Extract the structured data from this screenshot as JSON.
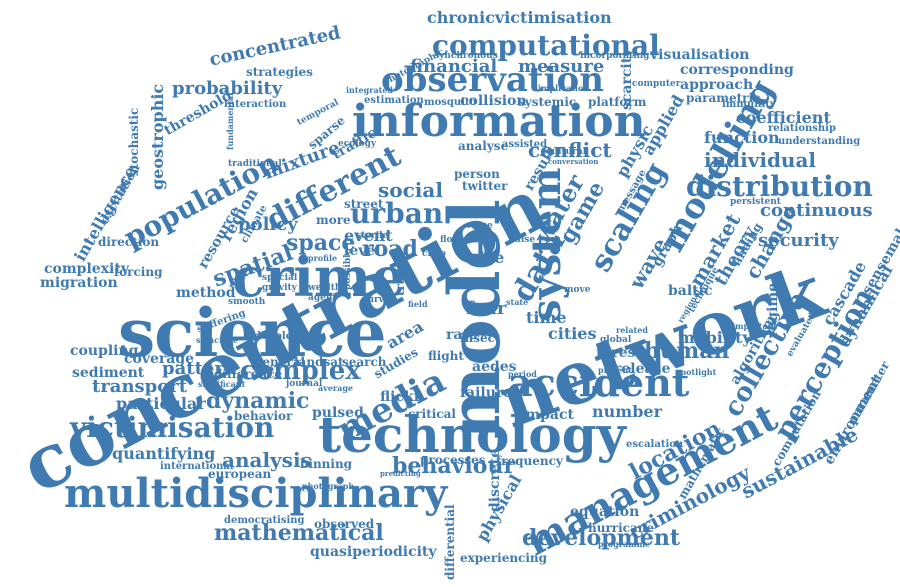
{
  "accent_color": "#3f7ab0",
  "words": {
    "chronicvictimisation": "chronicvictimisation",
    "computational": "computational",
    "concentrated": "concentrated",
    "strategies": "strategies",
    "observation": "observation",
    "financial": "financial",
    "measure": "measure",
    "scarcity": "scarcity",
    "visualisation": "visualisation",
    "approach": "approach",
    "corresponding": "corresponding",
    "parametric": "parametric",
    "immunity": "immunity",
    "coefficient": "coefficient",
    "relationship": "relationship",
    "understanding": "understanding",
    "probability": "probability",
    "threshold": "threshold",
    "interaction": "interaction",
    "information": "information",
    "function": "function",
    "individual": "individual",
    "distribution": "distribution",
    "continuous": "continuous",
    "security": "security",
    "concentration": "concentration",
    "population": "population",
    "geostrophic": "geostrophic",
    "stochastic": "stochastic",
    "intelligence": "intelligence",
    "excitation": "excitation",
    "mixture": "mixture",
    "different": "different",
    "urban": "urban",
    "social": "social",
    "spatial": "spatial",
    "space": "space",
    "policy": "policy",
    "region": "region",
    "resource": "resource",
    "crime": "crime",
    "science": "science",
    "network": "network",
    "model": "model",
    "modelling": "modelling",
    "system": "system",
    "scaling": "scaling",
    "water": "water",
    "data": "data",
    "game": "game",
    "conflict": "conflict",
    "result": "result",
    "physic": "physic",
    "applied": "applied",
    "market": "market",
    "theory": "theory",
    "change": "change",
    "wave": "wave",
    "graph": "graph",
    "direction": "direction",
    "complexity": "complexity",
    "migration": "migration",
    "forcing": "forcing",
    "method": "method",
    "pattern": "pattern",
    "complex": "complex",
    "coupling": "coupling",
    "coverage": "coverage",
    "sediment": "sediment",
    "transport": "transport",
    "particular": "particular",
    "dynamic": "dynamic",
    "media": "media",
    "accident": "accident",
    "victimisation": "victimisation",
    "technology": "technology",
    "quantifying": "quantifying",
    "analysis": "analysis",
    "multidisciplinary": "multidisciplinary",
    "behaviour": "behaviour",
    "mathematical": "mathematical",
    "development": "development",
    "management": "management",
    "collective": "collective",
    "location": "location",
    "number": "number",
    "human": "human",
    "mobility": "mobility",
    "forest": "forest",
    "release": "release",
    "criminology": "criminology",
    "sustainable": "sustainable",
    "perception": "perception",
    "cascade": "cascade",
    "dynamical": "dynamical",
    "algorithm": "algorithm",
    "environment": "environment",
    "computation": "computation",
    "sensemaking": "sensemaking",
    "parameter": "parameter",
    "regime": "regime",
    "baltic": "baltic",
    "cities": "cities",
    "time": "time",
    "fear": "fear",
    "size": "size",
    "road": "road",
    "event": "event",
    "level": "level",
    "street": "street",
    "more": "more",
    "traffic": "traffic",
    "sparse": "sparse",
    "collision": "collision",
    "systemic": "systemic",
    "platform": "platform",
    "mosquito": "mosquito",
    "estimation": "estimation",
    "integrated": "integrated",
    "analyse": "analyse",
    "assisted": "assisted",
    "person": "person",
    "twitter": "twitter",
    "flickr": "flickr",
    "critical": "critical",
    "failure": "failure",
    "impact": "impact",
    "aedes": "aedes",
    "search": "search",
    "general": "general",
    "landsat": "landsat",
    "difference": "difference",
    "behavior": "behavior",
    "pulsed": "pulsed",
    "studies": "studies",
    "area": "area",
    "rate": "rate",
    "insect": "insect",
    "flight": "flight",
    "european": "european",
    "international": "international",
    "binning": "binning",
    "processes": "processes",
    "frequency": "frequency",
    "discrete": "discrete",
    "physical": "physical",
    "differential": "differential",
    "equation": "equation",
    "hurricane": "hurricane",
    "experiencing": "experiencing",
    "democratising": "democratising",
    "observed": "observed",
    "quasiperiodicity": "quasiperiodicity",
    "mathematic": "mathematic",
    "escalation": "escalation",
    "suffering": "suffering",
    "structure": "structure",
    "double": "double",
    "smooth": "smooth",
    "special": "special",
    "gravity": "gravity",
    "wealth": "wealth",
    "agent": "agent",
    "computer": "computer",
    "synchronous": "synchronous",
    "photographic": "photographic",
    "ecology": "ecology",
    "traditional": "traditional",
    "fundamental": "fundamental",
    "temporal": "temporal",
    "cultural": "cultural",
    "conversation": "conversation",
    "persistent": "persistent",
    "important": "important",
    "spotlight": "spotlight",
    "related": "related",
    "global": "global",
    "move": "move",
    "state": "state",
    "present": "present",
    "period": "period",
    "value": "value",
    "journal": "journal",
    "average": "average",
    "significant": "significant",
    "photograph": "photograph",
    "predicting": "predicting",
    "programme": "programme",
    "evaluated": "evaluated",
    "finding": "finding",
    "technique": "technique",
    "regional": "regional",
    "message": "message",
    "climate": "climate",
    "curve": "curve",
    "chao": "chao",
    "flow": "flow",
    "possible": "possible",
    "sterile": "sterile",
    "travel": "travel",
    "field": "field",
    "profile": "profile",
    "pulse": "pulse",
    "incorporating": "incorporating",
    "implication": "implication"
  }
}
